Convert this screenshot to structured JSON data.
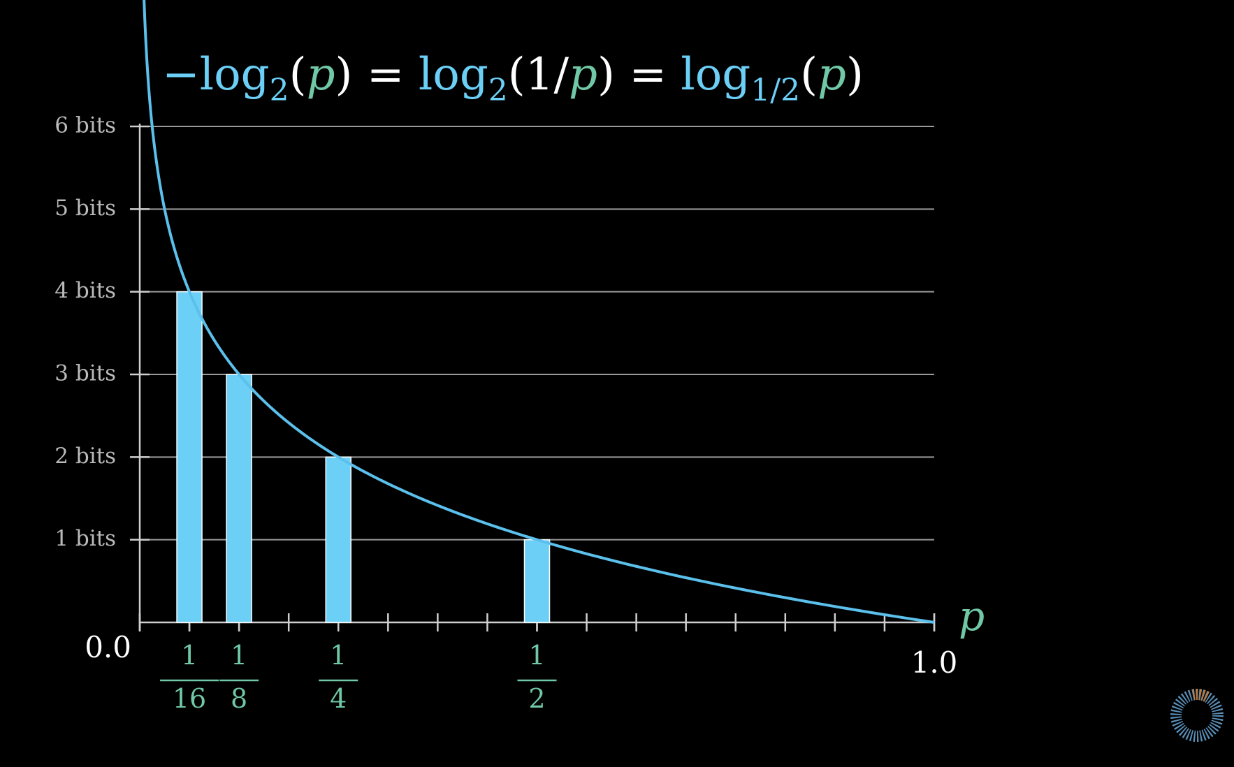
{
  "chart_data": {
    "type": "bar",
    "title_parts": [
      "−",
      "log",
      "2",
      "(",
      "p",
      ")",
      " = ",
      "log",
      "2",
      "(1/",
      "p",
      ")",
      " = ",
      "log",
      "1/2",
      "(",
      "p",
      ")"
    ],
    "x_label": "p",
    "x": [
      0.0625,
      0.125,
      0.25,
      0.5
    ],
    "values": [
      4,
      3,
      2,
      1
    ],
    "color": "#6ccff6",
    "curve_color": "#5bc0eb",
    "xlim": [
      0,
      1
    ],
    "ylim": [
      0,
      6
    ],
    "xticks": [
      {
        "value": 0,
        "label": "0.0"
      },
      {
        "value": 0.0625,
        "label": "1/16"
      },
      {
        "value": 0.125,
        "label": "1/8"
      },
      {
        "value": 0.25,
        "label": "1/4"
      },
      {
        "value": 0.5,
        "label": "1/2"
      },
      {
        "value": 1,
        "label": "1.0"
      }
    ],
    "xminor_step": 0.0625,
    "yticks": [
      {
        "value": 1,
        "label": "1 bits"
      },
      {
        "value": 2,
        "label": "2 bits"
      },
      {
        "value": 3,
        "label": "3 bits"
      },
      {
        "value": 4,
        "label": "4 bits"
      },
      {
        "value": 5,
        "label": "5 bits"
      },
      {
        "value": 6,
        "label": "6 bits"
      }
    ],
    "grid": true
  }
}
